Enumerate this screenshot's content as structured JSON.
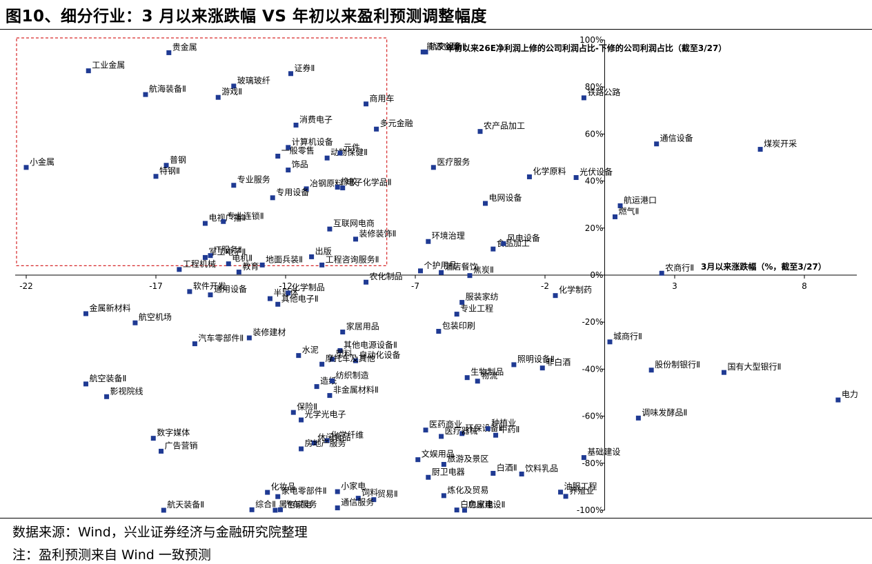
{
  "figure": {
    "title": "图10、细分行业：3 月以来涨跌幅  VS  年初以来盈利预测调整幅度",
    "source": "数据来源：Wind，兴业证券经济与金融研究院整理",
    "note": "注：盈利预测来自 Wind 一致预测"
  },
  "colors": {
    "marker": "#1F3A93",
    "axis": "#000000",
    "highlight_box": "#D62728"
  },
  "chart_data": {
    "type": "scatter",
    "title": "",
    "xlabel": "3月以来涨跌幅（%，截至3/27）",
    "ylabel": "年初以来26E净利润上修的公司利润占比-下修的公司利润占比（截至3/27）",
    "xlim": [
      -22.5,
      10.5
    ],
    "ylim": [
      -100,
      100
    ],
    "x_ticks": [
      -22,
      -17,
      -12,
      -7,
      -2,
      3,
      8
    ],
    "y_ticks": [
      100,
      80,
      60,
      40,
      20,
      0,
      -20,
      -40,
      -60,
      -80,
      -100
    ],
    "y_tick_suffix": "%",
    "grid": false,
    "legend": "none",
    "highlight_region": {
      "x": [
        -22.5,
        -8.1
      ],
      "y": [
        4,
        100
      ]
    },
    "points": [
      {
        "name": "贵金属",
        "x": -16.5,
        "y": 94.6
      },
      {
        "name": "工业金属",
        "x": -19.6,
        "y": 86.9
      },
      {
        "name": "航海装备Ⅱ",
        "x": -17.4,
        "y": 76.8
      },
      {
        "name": "玻璃玻纤",
        "x": -14.0,
        "y": 80.4
      },
      {
        "name": "证券Ⅱ",
        "x": -11.8,
        "y": 85.7
      },
      {
        "name": "游戏Ⅱ",
        "x": -14.6,
        "y": 75.6
      },
      {
        "name": "小金属",
        "x": -22.0,
        "y": 45.8
      },
      {
        "name": "普钢",
        "x": -16.6,
        "y": 46.7
      },
      {
        "name": "特钢Ⅱ",
        "x": -17.0,
        "y": 42.0
      },
      {
        "name": "消费电子",
        "x": -11.6,
        "y": 63.8
      },
      {
        "name": "计算机设备",
        "x": -11.9,
        "y": 54.3
      },
      {
        "name": "一般零售",
        "x": -12.3,
        "y": 50.6
      },
      {
        "name": "动物保健Ⅱ",
        "x": -10.4,
        "y": 49.8
      },
      {
        "name": "饰品",
        "x": -11.9,
        "y": 44.7
      },
      {
        "name": "专业服务",
        "x": -14.0,
        "y": 38.2
      },
      {
        "name": "冶钢原料",
        "x": -11.2,
        "y": 36.7
      },
      {
        "name": "专用设备",
        "x": -12.5,
        "y": 32.9
      },
      {
        "name": "电子化学品Ⅱ",
        "x": -9.8,
        "y": 37.1
      },
      {
        "name": "橡胶",
        "x": -10.0,
        "y": 37.4
      },
      {
        "name": "元件",
        "x": -9.9,
        "y": 51.9
      },
      {
        "name": "电视广播Ⅱ",
        "x": -15.1,
        "y": 22.0
      },
      {
        "name": "专业连锁Ⅱ",
        "x": -14.4,
        "y": 22.8
      },
      {
        "name": "互联网电商",
        "x": -10.3,
        "y": 19.6
      },
      {
        "name": "军工电子Ⅱ",
        "x": -15.1,
        "y": 7.5
      },
      {
        "name": "IT服务Ⅱ",
        "x": -14.9,
        "y": 8.3
      },
      {
        "name": "电机Ⅱ",
        "x": -14.2,
        "y": 4.8
      },
      {
        "name": "工程机械",
        "x": -16.1,
        "y": 2.4
      },
      {
        "name": "教育",
        "x": -13.8,
        "y": 1.3
      },
      {
        "name": "地面兵装Ⅱ",
        "x": -12.9,
        "y": 4.3
      },
      {
        "name": "出版",
        "x": -11.0,
        "y": 7.8
      },
      {
        "name": "工程咨询服务Ⅱ",
        "x": -10.6,
        "y": 4.3
      },
      {
        "name": "能源金属",
        "x": -6.7,
        "y": 94.9
      },
      {
        "name": "轨交设备Ⅱ",
        "x": -6.6,
        "y": 94.9
      },
      {
        "name": "商用车",
        "x": -8.9,
        "y": 72.8
      },
      {
        "name": "多元金融",
        "x": -8.5,
        "y": 62.1
      },
      {
        "name": "医疗服务",
        "x": -6.3,
        "y": 45.8
      },
      {
        "name": "装修装饰Ⅱ",
        "x": -9.3,
        "y": 15.3
      },
      {
        "name": "环境治理",
        "x": -6.5,
        "y": 14.3
      },
      {
        "name": "个护用品",
        "x": -6.8,
        "y": 1.8
      },
      {
        "name": "酒店餐饮",
        "x": -6.0,
        "y": 1.1
      },
      {
        "name": "焦炭Ⅱ",
        "x": -4.9,
        "y": -0.2
      },
      {
        "name": "农化制品",
        "x": -8.9,
        "y": -3.0
      },
      {
        "name": "农产品加工",
        "x": -4.5,
        "y": 61.1
      },
      {
        "name": "电网设备",
        "x": -4.3,
        "y": 30.5
      },
      {
        "name": "食品加工",
        "x": -4.0,
        "y": 11.1
      },
      {
        "name": "风电设备",
        "x": -3.6,
        "y": 13.4
      },
      {
        "name": "化学原料",
        "x": -2.6,
        "y": 41.8
      },
      {
        "name": "光伏设备",
        "x": -0.8,
        "y": 41.5
      },
      {
        "name": "铁路公路",
        "x": -0.5,
        "y": 75.4
      },
      {
        "name": "航运港口",
        "x": 0.9,
        "y": 29.5
      },
      {
        "name": "燃气Ⅱ",
        "x": 0.7,
        "y": 24.8
      },
      {
        "name": "通信设备",
        "x": 2.3,
        "y": 55.8
      },
      {
        "name": "煤炭开采",
        "x": 6.3,
        "y": 53.5
      },
      {
        "name": "农商行Ⅱ",
        "x": 2.5,
        "y": 0.8
      },
      {
        "name": "软件开发",
        "x": -15.7,
        "y": -7.0
      },
      {
        "name": "通用设备",
        "x": -14.9,
        "y": -8.4
      },
      {
        "name": "半导体",
        "x": -12.6,
        "y": -10.0
      },
      {
        "name": "化学制品",
        "x": -11.9,
        "y": -7.6
      },
      {
        "name": "其他电子Ⅱ",
        "x": -12.3,
        "y": -12.4
      },
      {
        "name": "金属新材料",
        "x": -19.7,
        "y": -16.4
      },
      {
        "name": "航空机场",
        "x": -17.8,
        "y": -20.3
      },
      {
        "name": "服装家纺",
        "x": -5.2,
        "y": -11.6
      },
      {
        "name": "专业工程",
        "x": -5.4,
        "y": -16.6
      },
      {
        "name": "化学制药",
        "x": -1.6,
        "y": -8.7
      },
      {
        "name": "包装印刷",
        "x": -6.1,
        "y": -23.9
      },
      {
        "name": "家居用品",
        "x": -9.8,
        "y": -24.2
      },
      {
        "name": "装修建材",
        "x": -13.4,
        "y": -26.7
      },
      {
        "name": "汽车零部件Ⅱ",
        "x": -15.5,
        "y": -29.2
      },
      {
        "name": "其他电源设备Ⅱ",
        "x": -9.9,
        "y": -32.1
      },
      {
        "name": "水泥",
        "x": -11.5,
        "y": -34.2
      },
      {
        "name": "塑料",
        "x": -10.2,
        "y": -35.8
      },
      {
        "name": "自动化设备",
        "x": -9.3,
        "y": -36.4
      },
      {
        "name": "摩托车及其他",
        "x": -10.6,
        "y": -37.9
      },
      {
        "name": "照明设备Ⅱ",
        "x": -3.2,
        "y": -38.1
      },
      {
        "name": "非白酒",
        "x": -2.1,
        "y": -39.5
      },
      {
        "name": "生物制品",
        "x": -5.0,
        "y": -43.6
      },
      {
        "name": "物流",
        "x": -4.6,
        "y": -45.1
      },
      {
        "name": "城商行Ⅱ",
        "x": 0.5,
        "y": -28.4
      },
      {
        "name": "股份制银行Ⅱ",
        "x": 2.1,
        "y": -40.4
      },
      {
        "name": "国有大型银行Ⅱ",
        "x": 4.9,
        "y": -41.4
      },
      {
        "name": "电力",
        "x": 9.3,
        "y": -53.1
      },
      {
        "name": "造纸",
        "x": -10.8,
        "y": -47.4
      },
      {
        "name": "纺织制造",
        "x": -10.2,
        "y": -45.0
      },
      {
        "name": "非金属材料Ⅱ",
        "x": -10.3,
        "y": -51.2
      },
      {
        "name": "航空装备Ⅱ",
        "x": -19.7,
        "y": -46.3
      },
      {
        "name": "影视院线",
        "x": -18.9,
        "y": -51.7
      },
      {
        "name": "保险Ⅱ",
        "x": -11.7,
        "y": -58.4
      },
      {
        "name": "光学光电子",
        "x": -11.4,
        "y": -61.6
      },
      {
        "name": "调味发酵品Ⅱ",
        "x": 1.6,
        "y": -60.8
      },
      {
        "name": "数字媒体",
        "x": -17.1,
        "y": -69.4
      },
      {
        "name": "广告营销",
        "x": -16.8,
        "y": -74.9
      },
      {
        "name": "医药商业",
        "x": -6.6,
        "y": -65.9
      },
      {
        "name": "环保设备Ⅱ",
        "x": -5.2,
        "y": -67.4
      },
      {
        "name": "种植业",
        "x": -4.2,
        "y": -65.3
      },
      {
        "name": "医疗器械",
        "x": -6.0,
        "y": -68.6
      },
      {
        "name": "中药Ⅱ",
        "x": -3.9,
        "y": -68.1
      },
      {
        "name": "休闲食品",
        "x": -10.9,
        "y": -71.4
      },
      {
        "name": "化学纤维",
        "x": -10.4,
        "y": -70.4
      },
      {
        "name": "房地产服务",
        "x": -11.4,
        "y": -73.9
      },
      {
        "name": "文娱用品",
        "x": -6.9,
        "y": -78.5
      },
      {
        "name": "旅游及景区",
        "x": -5.9,
        "y": -80.5
      },
      {
        "name": "厨卫电器",
        "x": -6.5,
        "y": -86.0
      },
      {
        "name": "白酒Ⅱ",
        "x": -4.0,
        "y": -84.3
      },
      {
        "name": "饮料乳品",
        "x": -2.9,
        "y": -84.6
      },
      {
        "name": "基础建设",
        "x": -0.5,
        "y": -77.6
      },
      {
        "name": "小家电",
        "x": -10.0,
        "y": -92.1
      },
      {
        "name": "饲料",
        "x": -9.2,
        "y": -94.9
      },
      {
        "name": "贸易Ⅱ",
        "x": -8.6,
        "y": -95.5
      },
      {
        "name": "炼化及贸易",
        "x": -5.9,
        "y": -93.8
      },
      {
        "name": "化妆品",
        "x": -12.7,
        "y": -92.4
      },
      {
        "name": "家电零部件Ⅱ",
        "x": -12.3,
        "y": -94.2
      },
      {
        "name": "综合Ⅱ",
        "x": -13.3,
        "y": -99.8
      },
      {
        "name": "黑色家电",
        "x": -12.4,
        "y": -100.0
      },
      {
        "name": "汽车服务",
        "x": -12.2,
        "y": -99.8
      },
      {
        "name": "通信服务",
        "x": -10.0,
        "y": -99.0
      },
      {
        "name": "航天装备Ⅱ",
        "x": -16.7,
        "y": -100.0
      },
      {
        "name": "白色家电",
        "x": -5.4,
        "y": -99.9
      },
      {
        "name": "房屋建设Ⅱ",
        "x": -5.1,
        "y": -100.0
      },
      {
        "name": "油服工程",
        "x": -1.4,
        "y": -92.3
      },
      {
        "name": "养殖业",
        "x": -1.2,
        "y": -94.1
      }
    ]
  }
}
